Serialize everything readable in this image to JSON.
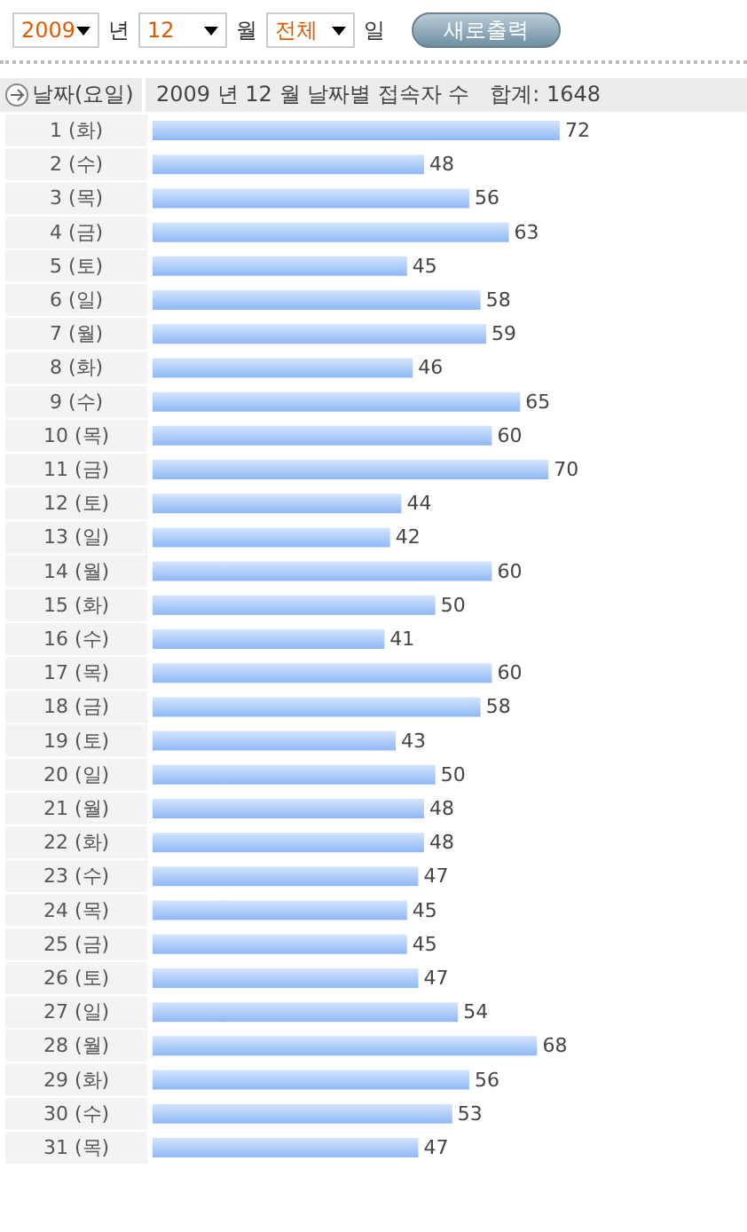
{
  "chart_data": {
    "type": "bar",
    "orientation": "horizontal",
    "title": "2009 년 12 월 날짜별 접속자 수   합계: 1648",
    "ylabel": "날짜(요일)",
    "annotations": [
      "2009",
      "년",
      "12",
      "월",
      "전체",
      "일",
      "새로출력"
    ],
    "categories": [
      "1 (화)",
      "2 (수)",
      "3 (목)",
      "4 (금)",
      "5 (토)",
      "6 (일)",
      "7 (월)",
      "8 (화)",
      "9 (수)",
      "10 (목)",
      "11 (금)",
      "12 (토)",
      "13 (일)",
      "14 (월)",
      "15 (화)",
      "16 (수)",
      "17 (목)",
      "18 (금)",
      "19 (토)",
      "20 (일)",
      "21 (월)",
      "22 (화)",
      "23 (수)",
      "24 (목)",
      "25 (금)",
      "26 (토)",
      "27 (일)",
      "28 (월)",
      "29 (화)",
      "30 (수)",
      "31 (목)"
    ],
    "values": [
      72,
      48,
      56,
      63,
      45,
      58,
      59,
      46,
      65,
      60,
      70,
      44,
      42,
      60,
      50,
      41,
      60,
      58,
      43,
      50,
      48,
      48,
      47,
      45,
      45,
      47,
      54,
      68,
      56,
      53,
      47
    ],
    "color": "#8fb8f5",
    "data_labels": true
  }
}
